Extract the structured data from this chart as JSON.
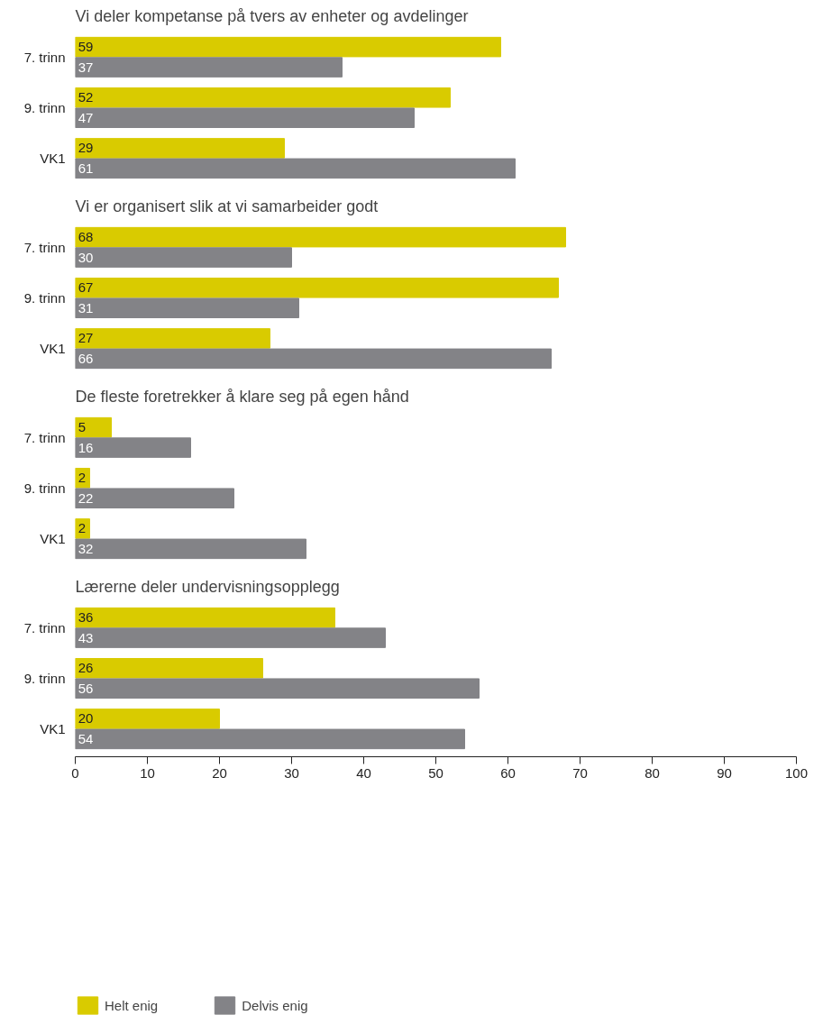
{
  "chart_data": [
    {
      "type": "bar",
      "orientation": "horizontal",
      "title": "Vi deler kompetanse på tvers av enheter og avdelinger",
      "categories": [
        "7. trinn",
        "9. trinn",
        "VK1"
      ],
      "series": [
        {
          "color": "#d9cb00",
          "values": [
            59,
            52,
            29
          ]
        },
        {
          "color": "#838387",
          "values": [
            37,
            47,
            61
          ]
        }
      ],
      "xlim": [
        0,
        100
      ],
      "xticks": [
        0,
        10,
        20,
        30,
        40,
        50,
        60,
        70,
        80,
        90,
        100
      ],
      "data_labels": true,
      "tick_labels": "y"
    },
    {
      "type": "bar",
      "orientation": "horizontal",
      "title": "Vi er organisert slik at vi samarbeider godt",
      "categories": [
        "7. trinn",
        "9. trinn",
        "VK1"
      ],
      "series": [
        {
          "color": "#d9cb00",
          "values": [
            68,
            67,
            27
          ]
        },
        {
          "color": "#838387",
          "values": [
            30,
            31,
            66
          ]
        }
      ],
      "xlim": [
        0,
        100
      ],
      "xticks": [
        0,
        10,
        20,
        30,
        40,
        50,
        60,
        70,
        80,
        90,
        100
      ],
      "data_labels": true,
      "tick_labels": "y"
    },
    {
      "type": "bar",
      "orientation": "horizontal",
      "title": "De fleste foretrekker å klare seg på egen hånd",
      "categories": [
        "7. trinn",
        "9. trinn",
        "VK1"
      ],
      "series": [
        {
          "color": "#d9cb00",
          "values": [
            5,
            2,
            2
          ]
        },
        {
          "color": "#838387",
          "values": [
            16,
            22,
            32
          ]
        }
      ],
      "xlim": [
        0,
        100
      ],
      "xticks": [
        0,
        10,
        20,
        30,
        40,
        50,
        60,
        70,
        80,
        90,
        100
      ],
      "data_labels": true,
      "tick_labels": "y"
    },
    {
      "type": "bar",
      "orientation": "horizontal",
      "title": "Lærerne deler undervisningsopplegg",
      "categories": [
        "7. trinn",
        "9. trinn",
        "VK1"
      ],
      "series": [
        {
          "name": "Helt enig",
          "color": "#d9cb00",
          "values": [
            36,
            26,
            20
          ]
        },
        {
          "name": "Delvis enig",
          "color": "#838387",
          "values": [
            43,
            56,
            54
          ]
        }
      ],
      "xlim": [
        0,
        100
      ],
      "xticks": [
        0,
        10,
        20,
        30,
        40,
        50,
        60,
        70,
        80,
        90,
        100
      ],
      "data_labels": true,
      "legend": "bottom"
    }
  ]
}
